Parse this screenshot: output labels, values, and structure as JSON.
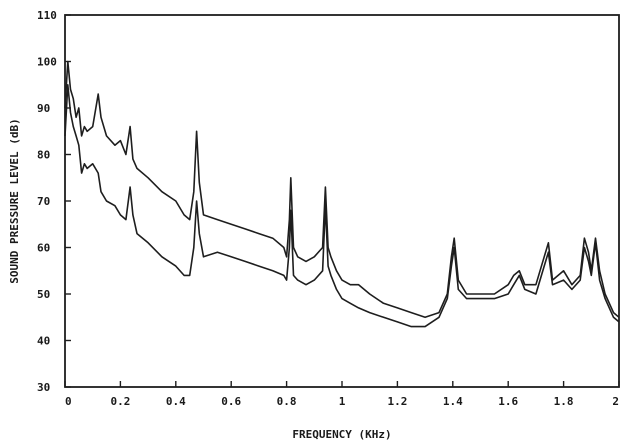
{
  "chart_data": {
    "type": "line",
    "title": "",
    "xlabel": "FREQUENCY (KHz)",
    "ylabel": "SOUND PRESSURE LEVEL (dB)",
    "xlim": [
      0,
      2
    ],
    "ylim": [
      30,
      110
    ],
    "x_ticks": [
      0,
      0.2,
      0.4,
      0.6,
      0.8,
      1,
      1.2,
      1.4,
      1.6,
      1.8,
      2
    ],
    "x_tick_labels": [
      "0",
      "0.2",
      "0.4",
      "0.6",
      "0.8",
      "1",
      "1.2",
      "1.4",
      "1.6",
      "1.8",
      "2"
    ],
    "y_ticks": [
      30,
      40,
      50,
      60,
      70,
      80,
      90,
      100,
      110
    ],
    "y_tick_labels": [
      "30",
      "40",
      "50",
      "60",
      "70",
      "80",
      "90",
      "100",
      "110"
    ],
    "grid": false,
    "legend": "none",
    "line_color": "#1e1e1e",
    "series": [
      {
        "x": [
          0.0,
          0.01,
          0.02,
          0.03,
          0.04,
          0.05,
          0.06,
          0.07,
          0.08,
          0.1,
          0.12,
          0.13,
          0.15,
          0.18,
          0.2,
          0.22,
          0.235,
          0.245,
          0.26,
          0.3,
          0.35,
          0.4,
          0.43,
          0.45,
          0.465,
          0.475,
          0.485,
          0.5,
          0.55,
          0.6,
          0.65,
          0.7,
          0.75,
          0.79,
          0.8,
          0.81,
          0.815,
          0.825,
          0.84,
          0.87,
          0.9,
          0.93,
          0.94,
          0.95,
          0.96,
          0.98,
          1.0,
          1.03,
          1.06,
          1.1,
          1.15,
          1.2,
          1.25,
          1.3,
          1.35,
          1.38,
          1.395,
          1.405,
          1.42,
          1.45,
          1.5,
          1.55,
          1.6,
          1.62,
          1.64,
          1.66,
          1.7,
          1.73,
          1.745,
          1.76,
          1.8,
          1.83,
          1.86,
          1.875,
          1.89,
          1.9,
          1.915,
          1.93,
          1.95,
          1.98,
          2.0
        ],
        "values": [
          90,
          100,
          94,
          92,
          88,
          90,
          84,
          86,
          85,
          86,
          93,
          88,
          84,
          82,
          83,
          80,
          86,
          79,
          77,
          75,
          72,
          70,
          67,
          66,
          72,
          85,
          74,
          67,
          66,
          65,
          64,
          63,
          62,
          60,
          58,
          66,
          75,
          60,
          58,
          57,
          58,
          60,
          73,
          60,
          58,
          55,
          53,
          52,
          52,
          50,
          48,
          47,
          46,
          45,
          46,
          50,
          58,
          62,
          53,
          50,
          50,
          50,
          52,
          54,
          55,
          52,
          52,
          58,
          61,
          53,
          55,
          52,
          54,
          62,
          59,
          55,
          62,
          55,
          50,
          46,
          45
        ]
      },
      {
        "x": [
          0.0,
          0.01,
          0.02,
          0.03,
          0.04,
          0.05,
          0.06,
          0.07,
          0.08,
          0.1,
          0.12,
          0.13,
          0.15,
          0.18,
          0.2,
          0.22,
          0.235,
          0.245,
          0.26,
          0.3,
          0.35,
          0.4,
          0.43,
          0.45,
          0.465,
          0.475,
          0.485,
          0.5,
          0.55,
          0.6,
          0.65,
          0.7,
          0.75,
          0.79,
          0.8,
          0.81,
          0.815,
          0.825,
          0.84,
          0.87,
          0.9,
          0.93,
          0.94,
          0.95,
          0.96,
          0.98,
          1.0,
          1.03,
          1.06,
          1.1,
          1.15,
          1.2,
          1.25,
          1.3,
          1.35,
          1.38,
          1.395,
          1.405,
          1.42,
          1.45,
          1.5,
          1.55,
          1.6,
          1.62,
          1.64,
          1.66,
          1.7,
          1.73,
          1.745,
          1.76,
          1.8,
          1.83,
          1.86,
          1.875,
          1.89,
          1.9,
          1.915,
          1.93,
          1.95,
          1.98,
          2.0
        ],
        "values": [
          84,
          95,
          89,
          86,
          84,
          82,
          76,
          78,
          77,
          78,
          76,
          72,
          70,
          69,
          67,
          66,
          73,
          67,
          63,
          61,
          58,
          56,
          54,
          54,
          60,
          70,
          63,
          58,
          59,
          58,
          57,
          56,
          55,
          54,
          53,
          60,
          68,
          54,
          53,
          52,
          53,
          55,
          69,
          56,
          54,
          51,
          49,
          48,
          47,
          46,
          45,
          44,
          43,
          43,
          45,
          49,
          56,
          60,
          51,
          49,
          49,
          49,
          50,
          52,
          54,
          51,
          50,
          56,
          59,
          52,
          53,
          51,
          53,
          60,
          57,
          54,
          61,
          53,
          49,
          45,
          44
        ]
      }
    ]
  }
}
